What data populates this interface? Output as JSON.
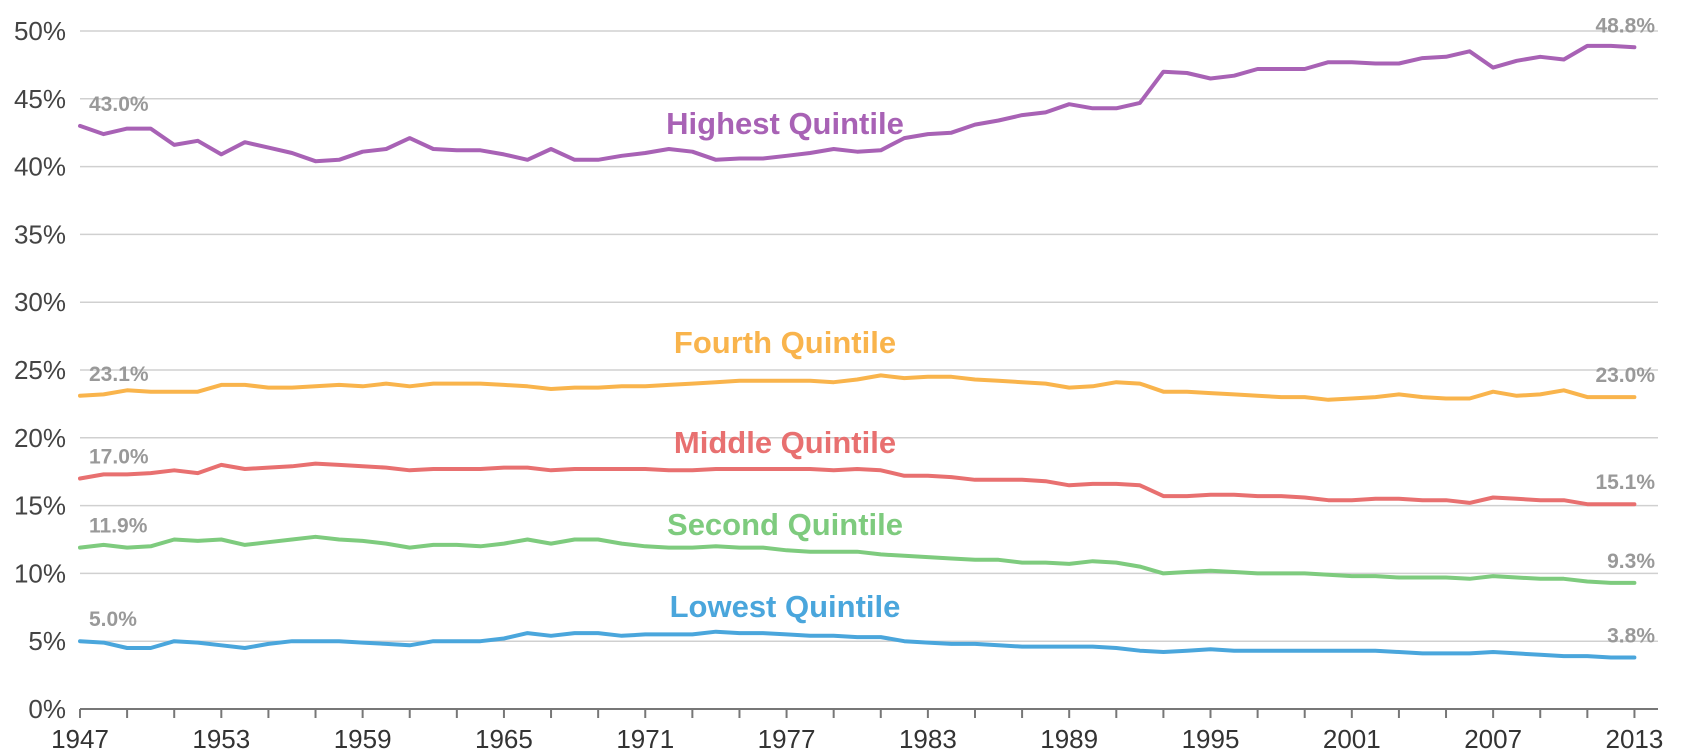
{
  "chart_data": {
    "type": "line",
    "title": "",
    "xlabel": "",
    "ylabel": "",
    "xlim": [
      1947,
      2014
    ],
    "ylim": [
      0,
      50
    ],
    "y_ticks": [
      0,
      5,
      10,
      15,
      20,
      25,
      30,
      35,
      40,
      45,
      50
    ],
    "y_tick_labels": [
      "0%",
      "5%",
      "10%",
      "15%",
      "20%",
      "25%",
      "30%",
      "35%",
      "40%",
      "45%",
      "50%"
    ],
    "x_tick_labels": [
      "1947",
      "1953",
      "1959",
      "1965",
      "1971",
      "1977",
      "1983",
      "1989",
      "1995",
      "2001",
      "2007",
      "2013"
    ],
    "grid": true,
    "x_start": 1947,
    "series": [
      {
        "name": "Highest Quintile",
        "color": "#a862b5",
        "start_label": "43.0%",
        "end_label": "48.8%",
        "values": [
          43.0,
          42.4,
          42.8,
          42.8,
          41.6,
          41.9,
          40.9,
          41.8,
          41.4,
          41.0,
          40.4,
          40.5,
          41.1,
          41.3,
          42.1,
          41.3,
          41.2,
          41.2,
          40.9,
          40.5,
          41.3,
          40.5,
          40.5,
          40.8,
          41.0,
          41.3,
          41.1,
          40.5,
          40.6,
          40.6,
          40.8,
          41.0,
          41.3,
          41.1,
          41.2,
          42.1,
          42.4,
          42.5,
          43.1,
          43.4,
          43.8,
          44.0,
          44.6,
          44.3,
          44.3,
          44.7,
          47.0,
          46.9,
          46.5,
          46.7,
          47.2,
          47.2,
          47.2,
          47.7,
          47.7,
          47.6,
          47.6,
          48.0,
          48.1,
          48.5,
          47.3,
          47.8,
          48.1,
          47.9,
          48.9,
          48.9,
          48.8
        ]
      },
      {
        "name": "Fourth Quintile",
        "color": "#f9b44c",
        "start_label": "23.1%",
        "end_label": "23.0%",
        "values": [
          23.1,
          23.2,
          23.5,
          23.4,
          23.4,
          23.4,
          23.9,
          23.9,
          23.7,
          23.7,
          23.8,
          23.9,
          23.8,
          24.0,
          23.8,
          24.0,
          24.0,
          24.0,
          23.9,
          23.8,
          23.6,
          23.7,
          23.7,
          23.8,
          23.8,
          23.9,
          24.0,
          24.1,
          24.2,
          24.2,
          24.2,
          24.2,
          24.1,
          24.3,
          24.6,
          24.4,
          24.5,
          24.5,
          24.3,
          24.2,
          24.1,
          24.0,
          23.7,
          23.8,
          24.1,
          24.0,
          23.4,
          23.4,
          23.3,
          23.2,
          23.1,
          23.0,
          23.0,
          22.8,
          22.9,
          23.0,
          23.2,
          23.0,
          22.9,
          22.9,
          23.4,
          23.1,
          23.2,
          23.5,
          23.0,
          23.0,
          23.0
        ]
      },
      {
        "name": "Middle Quintile",
        "color": "#e87070",
        "start_label": "17.0%",
        "end_label": "15.1%",
        "values": [
          17.0,
          17.3,
          17.3,
          17.4,
          17.6,
          17.4,
          18.0,
          17.7,
          17.8,
          17.9,
          18.1,
          18.0,
          17.9,
          17.8,
          17.6,
          17.7,
          17.7,
          17.7,
          17.8,
          17.8,
          17.6,
          17.7,
          17.7,
          17.7,
          17.7,
          17.6,
          17.6,
          17.7,
          17.7,
          17.7,
          17.7,
          17.7,
          17.6,
          17.7,
          17.6,
          17.2,
          17.2,
          17.1,
          16.9,
          16.9,
          16.9,
          16.8,
          16.5,
          16.6,
          16.6,
          16.5,
          15.7,
          15.7,
          15.8,
          15.8,
          15.7,
          15.7,
          15.6,
          15.4,
          15.4,
          15.5,
          15.5,
          15.4,
          15.4,
          15.2,
          15.6,
          15.5,
          15.4,
          15.4,
          15.1,
          15.1,
          15.1
        ]
      },
      {
        "name": "Second Quintile",
        "color": "#7ecb7e",
        "start_label": "11.9%",
        "end_label": "9.3%",
        "values": [
          11.9,
          12.1,
          11.9,
          12.0,
          12.5,
          12.4,
          12.5,
          12.1,
          12.3,
          12.5,
          12.7,
          12.5,
          12.4,
          12.2,
          11.9,
          12.1,
          12.1,
          12.0,
          12.2,
          12.5,
          12.2,
          12.5,
          12.5,
          12.2,
          12.0,
          11.9,
          11.9,
          12.0,
          11.9,
          11.9,
          11.7,
          11.6,
          11.6,
          11.6,
          11.4,
          11.3,
          11.2,
          11.1,
          11.0,
          11.0,
          10.8,
          10.8,
          10.7,
          10.9,
          10.8,
          10.5,
          10.0,
          10.1,
          10.2,
          10.1,
          10.0,
          10.0,
          10.0,
          9.9,
          9.8,
          9.8,
          9.7,
          9.7,
          9.7,
          9.6,
          9.8,
          9.7,
          9.6,
          9.6,
          9.4,
          9.3,
          9.3
        ]
      },
      {
        "name": "Lowest Quintile",
        "color": "#4aa6dc",
        "start_label": "5.0%",
        "end_label": "3.8%",
        "values": [
          5.0,
          4.9,
          4.5,
          4.5,
          5.0,
          4.9,
          4.7,
          4.5,
          4.8,
          5.0,
          5.0,
          5.0,
          4.9,
          4.8,
          4.7,
          5.0,
          5.0,
          5.0,
          5.2,
          5.6,
          5.4,
          5.6,
          5.6,
          5.4,
          5.5,
          5.5,
          5.5,
          5.7,
          5.6,
          5.6,
          5.5,
          5.4,
          5.4,
          5.3,
          5.3,
          5.0,
          4.9,
          4.8,
          4.8,
          4.7,
          4.6,
          4.6,
          4.6,
          4.6,
          4.5,
          4.3,
          4.2,
          4.3,
          4.4,
          4.3,
          4.3,
          4.3,
          4.3,
          4.3,
          4.3,
          4.3,
          4.2,
          4.1,
          4.1,
          4.1,
          4.2,
          4.1,
          4.0,
          3.9,
          3.9,
          3.8,
          3.8
        ]
      }
    ]
  }
}
